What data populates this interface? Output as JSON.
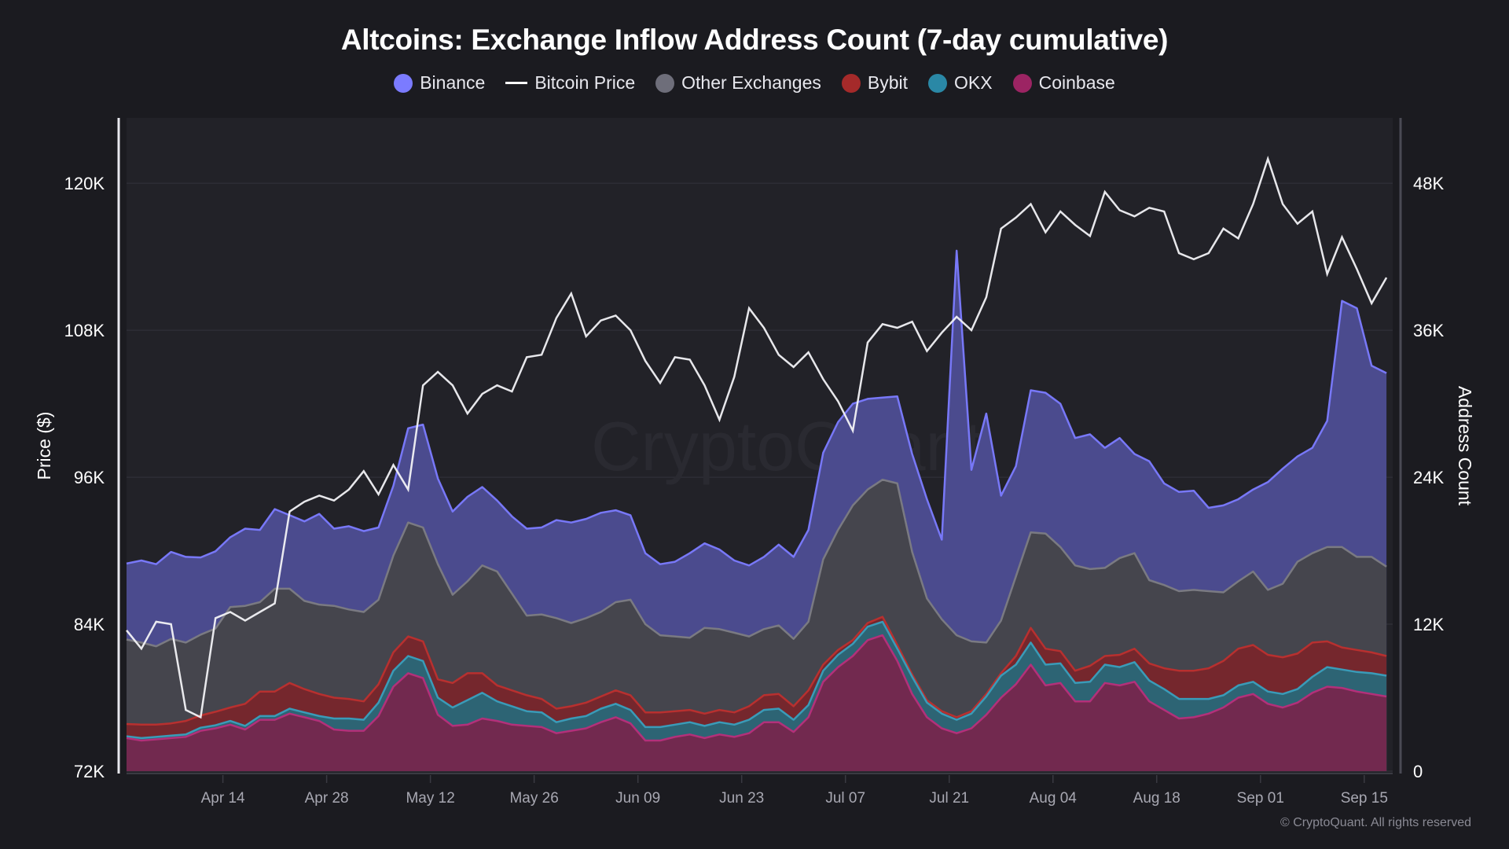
{
  "chart_data": {
    "type": "area",
    "title": "Altcoins: Exchange Inflow Address Count (7-day cumulative)",
    "legend": [
      {
        "name": "Binance",
        "color": "#7b7bff",
        "marker": "dot"
      },
      {
        "name": "Bitcoin Price",
        "color": "#ffffff",
        "marker": "line"
      },
      {
        "name": "Other Exchanges",
        "color": "#6e6e7a",
        "marker": "dot"
      },
      {
        "name": "Bybit",
        "color": "#a52a2a",
        "marker": "dot"
      },
      {
        "name": "OKX",
        "color": "#2a88a6",
        "marker": "dot"
      },
      {
        "name": "Coinbase",
        "color": "#9c2463",
        "marker": "dot"
      }
    ],
    "legend_position": "top-center",
    "ylabel_left": "Price ($)",
    "ylabel_right": "Address Count",
    "y_left_ticks": [
      "72K",
      "84K",
      "96K",
      "108K",
      "120K"
    ],
    "y_left_range": [
      72000,
      126000
    ],
    "y_right_ticks": [
      "0",
      "12K",
      "24K",
      "36K",
      "48K"
    ],
    "y_right_range": [
      0,
      54000
    ],
    "x_ticks": [
      "Apr 14",
      "Apr 28",
      "May 12",
      "May 26",
      "Jun 09",
      "Jun 23",
      "Jul 07",
      "Jul 21",
      "Aug 04",
      "Aug 18",
      "Sep 01",
      "Sep 15"
    ],
    "x_start": "Apr 01",
    "x_end": "Sep 17",
    "grid": true,
    "stacking": "stacked (bottom to top: Coinbase, OKX, Bybit, Other Exchanges, Binance)",
    "day_offsets": [
      0,
      2,
      4,
      6,
      8,
      10,
      12,
      14,
      16,
      18,
      20,
      22,
      24,
      26,
      28,
      30,
      32,
      34,
      36,
      38,
      40,
      42,
      44,
      46,
      48,
      50,
      52,
      54,
      56,
      58,
      60,
      62,
      64,
      66,
      68,
      70,
      72,
      74,
      76,
      78,
      80,
      82,
      84,
      86,
      88,
      90,
      92,
      94,
      96,
      98,
      100,
      102,
      104,
      106,
      108,
      110,
      112,
      114,
      116,
      118,
      120,
      122,
      124,
      126,
      128,
      130,
      132,
      134,
      136,
      138,
      140,
      142,
      144,
      146,
      148,
      150,
      152,
      154,
      156,
      158,
      160,
      162,
      164,
      166,
      168,
      170
    ],
    "series": [
      {
        "name": "Coinbase",
        "values": [
          2700,
          2500,
          2600,
          2700,
          2800,
          3300,
          3500,
          3800,
          3400,
          4200,
          4200,
          4700,
          4400,
          4100,
          3400,
          3300,
          3300,
          4500,
          6900,
          8000,
          7600,
          4600,
          3700,
          3800,
          4300,
          4100,
          3800,
          3700,
          3600,
          3100,
          3300,
          3500,
          4000,
          4400,
          3900,
          2500,
          2500,
          2800,
          3000,
          2700,
          3000,
          2800,
          3100,
          4000,
          4000,
          3200,
          4400,
          7300,
          8500,
          9400,
          10700,
          11100,
          9000,
          6300,
          4400,
          3500,
          3100,
          3500,
          4600,
          6000,
          7100,
          8700,
          7000,
          7200,
          5700,
          5700,
          7200,
          7000,
          7300,
          5700,
          5000,
          4300,
          4400,
          4700,
          5200,
          6000,
          6300,
          5500,
          5200,
          5600,
          6400,
          6900,
          6800,
          6500,
          6300,
          6100
        ]
      },
      {
        "name": "OKX",
        "values": [
          150,
          200,
          200,
          200,
          200,
          250,
          250,
          300,
          300,
          300,
          300,
          400,
          400,
          400,
          900,
          1000,
          900,
          1100,
          1300,
          1400,
          1400,
          1400,
          1500,
          2000,
          2100,
          1600,
          1500,
          1200,
          1200,
          900,
          1000,
          1000,
          1100,
          1100,
          1100,
          1100,
          1100,
          1000,
          1000,
          1000,
          1000,
          1000,
          1100,
          1000,
          1100,
          1000,
          1000,
          900,
          1000,
          1000,
          1100,
          1100,
          1000,
          1400,
          1200,
          1200,
          1100,
          1200,
          1500,
          1800,
          1600,
          1800,
          1700,
          1600,
          1500,
          1600,
          1500,
          1500,
          1600,
          1700,
          1700,
          1600,
          1500,
          1200,
          1000,
          1000,
          1000,
          1000,
          1100,
          1100,
          1300,
          1600,
          1500,
          1600,
          1700,
          1700
        ]
      },
      {
        "name": "Bybit",
        "values": [
          1000,
          1100,
          1000,
          1000,
          1100,
          1000,
          1100,
          1100,
          1800,
          2000,
          2000,
          2100,
          1900,
          1800,
          1700,
          1600,
          1500,
          1500,
          1500,
          1600,
          1600,
          1500,
          2000,
          2200,
          1600,
          1300,
          1300,
          1300,
          1100,
          1100,
          1000,
          1100,
          1000,
          1100,
          1200,
          1200,
          1200,
          1100,
          1000,
          1000,
          1000,
          1000,
          1100,
          1200,
          1200,
          1100,
          1200,
          500,
          400,
          300,
          300,
          400,
          300,
          200,
          200,
          200,
          200,
          200,
          200,
          200,
          700,
          1200,
          1300,
          1000,
          1000,
          1300,
          700,
          1000,
          1100,
          1400,
          1700,
          2300,
          2300,
          2500,
          2800,
          3000,
          3000,
          3000,
          3000,
          2900,
          2800,
          2100,
          1800,
          1800,
          1700,
          1600
        ]
      },
      {
        "name": "Other Exchanges",
        "values": [
          6900,
          6700,
          6400,
          6900,
          6400,
          6600,
          6800,
          8200,
          8000,
          7300,
          8400,
          7700,
          7200,
          7300,
          7500,
          7300,
          7300,
          6900,
          7900,
          9300,
          9300,
          9400,
          7200,
          7500,
          8800,
          9300,
          7900,
          6500,
          6900,
          7400,
          6800,
          6900,
          6900,
          7200,
          7800,
          7200,
          6300,
          6100,
          5900,
          7000,
          6600,
          6500,
          5700,
          5400,
          5600,
          5500,
          5600,
          8600,
          9800,
          11000,
          10900,
          11200,
          13200,
          10000,
          8300,
          7500,
          6700,
          5700,
          4200,
          4300,
          6500,
          7800,
          9400,
          8500,
          8600,
          7900,
          7200,
          7900,
          7800,
          6800,
          6800,
          6500,
          6600,
          6300,
          5600,
          5500,
          6000,
          5300,
          6000,
          7500,
          7300,
          7700,
          8200,
          7600,
          7800,
          7300
        ]
      },
      {
        "name": "Binance",
        "values": [
          6200,
          6700,
          6700,
          7100,
          7000,
          6300,
          6300,
          5700,
          6300,
          5900,
          6500,
          6000,
          6500,
          7400,
          6300,
          6800,
          6600,
          5900,
          5700,
          7700,
          8400,
          7000,
          6800,
          6900,
          6400,
          5800,
          6300,
          7100,
          7100,
          8000,
          8200,
          8100,
          8100,
          7500,
          6900,
          5800,
          5800,
          6100,
          6900,
          6900,
          6500,
          5900,
          5800,
          5900,
          6600,
          6700,
          7500,
          8700,
          8800,
          8300,
          7400,
          6700,
          7100,
          8000,
          8100,
          6500,
          31400,
          14000,
          18700,
          10200,
          9000,
          11600,
          11500,
          11700,
          10400,
          11000,
          9800,
          9800,
          8100,
          9700,
          8300,
          8100,
          8100,
          6800,
          7100,
          6700,
          6700,
          8800,
          9400,
          8600,
          8600,
          10300,
          20100,
          20300,
          15600,
          15800
        ]
      },
      {
        "name": "Bitcoin Price",
        "axis": "left",
        "values": [
          83500,
          82000,
          84200,
          84000,
          77000,
          76400,
          84500,
          85000,
          84300,
          85000,
          85700,
          93200,
          94000,
          94500,
          94100,
          95000,
          96500,
          94600,
          97000,
          95000,
          103500,
          104600,
          103500,
          101200,
          102800,
          103500,
          103000,
          105800,
          106000,
          109000,
          111000,
          107500,
          108800,
          109200,
          108000,
          105500,
          103700,
          105800,
          105600,
          103500,
          100700,
          104200,
          109800,
          108200,
          106000,
          105000,
          106200,
          104000,
          102200,
          99800,
          107000,
          108500,
          108200,
          108700,
          106300,
          107800,
          109100,
          108000,
          110700,
          116300,
          117200,
          118300,
          116000,
          117700,
          116600,
          115700,
          119300,
          117800,
          117300,
          118000,
          117700,
          114300,
          113800,
          114300,
          116300,
          115500,
          118300,
          122000,
          118300,
          116700,
          117700,
          112600,
          115600,
          113000,
          110200,
          112300
        ]
      }
    ]
  },
  "watermark": "CryptoQuant",
  "copyright": "© CryptoQuant. All rights reserved"
}
